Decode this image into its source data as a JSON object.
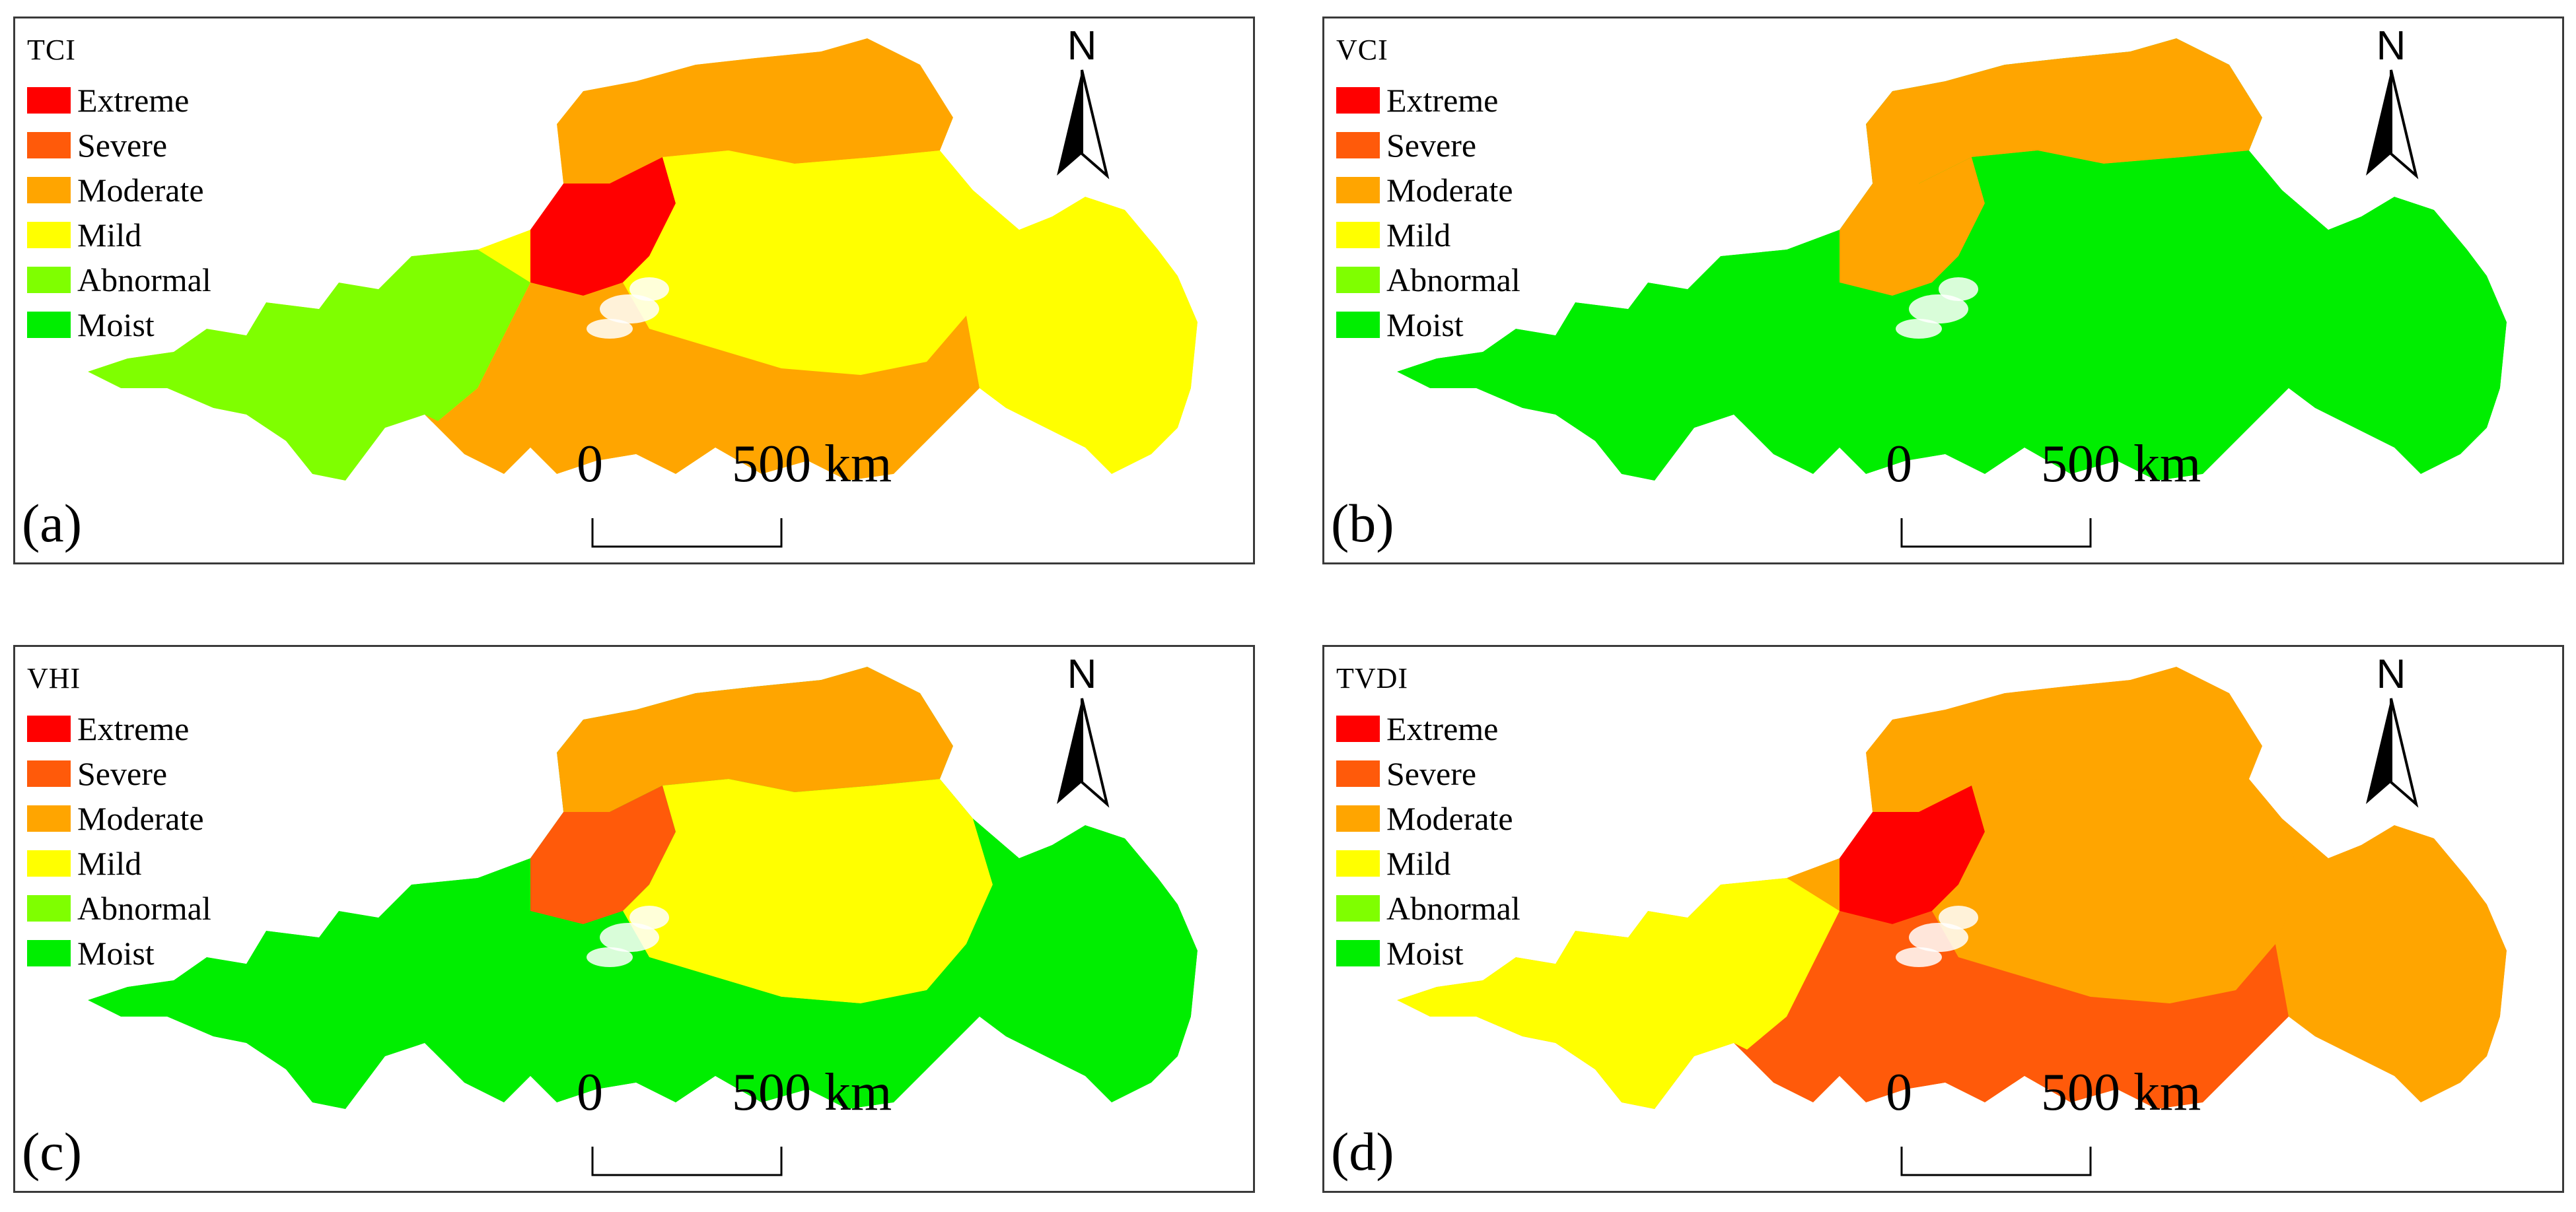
{
  "legend_items": [
    {
      "label": "Extreme",
      "color": "#ff0000"
    },
    {
      "label": "Severe",
      "color": "#ff5a0a"
    },
    {
      "label": "Moderate",
      "color": "#ffa500"
    },
    {
      "label": "Mild",
      "color": "#ffff00"
    },
    {
      "label": "Abnormal",
      "color": "#7fff00"
    },
    {
      "label": "Moist",
      "color": "#00ee00"
    }
  ],
  "north_label": "N",
  "scale": {
    "zero": "0",
    "distance": "500 km"
  },
  "panels": [
    {
      "title": "TCI",
      "label": "(a)",
      "dominant_class": "Mild",
      "zone_classes": {
        "north": "Moderate",
        "northwest": "Extreme",
        "west": "Abnormal",
        "center": "Mild",
        "south": "Moderate",
        "east": "Mild"
      }
    },
    {
      "title": "VCI",
      "label": "(b)",
      "dominant_class": "Moist",
      "zone_classes": {
        "north": "Moderate",
        "northwest": "Moderate",
        "west": "Moist",
        "center": "Moist",
        "south": "Moist",
        "east": "Moist"
      }
    },
    {
      "title": "VHI",
      "label": "(c)",
      "dominant_class": "Moist",
      "zone_classes": {
        "north": "Moderate",
        "northwest": "Severe",
        "west": "Moist",
        "center": "Mild",
        "south": "Moist",
        "east": "Moist"
      }
    },
    {
      "title": "TVDI",
      "label": "(d)",
      "dominant_class": "Moderate",
      "zone_classes": {
        "north": "Moderate",
        "northwest": "Extreme",
        "west": "Mild",
        "center": "Moderate",
        "south": "Severe",
        "east": "Moderate"
      }
    }
  ]
}
